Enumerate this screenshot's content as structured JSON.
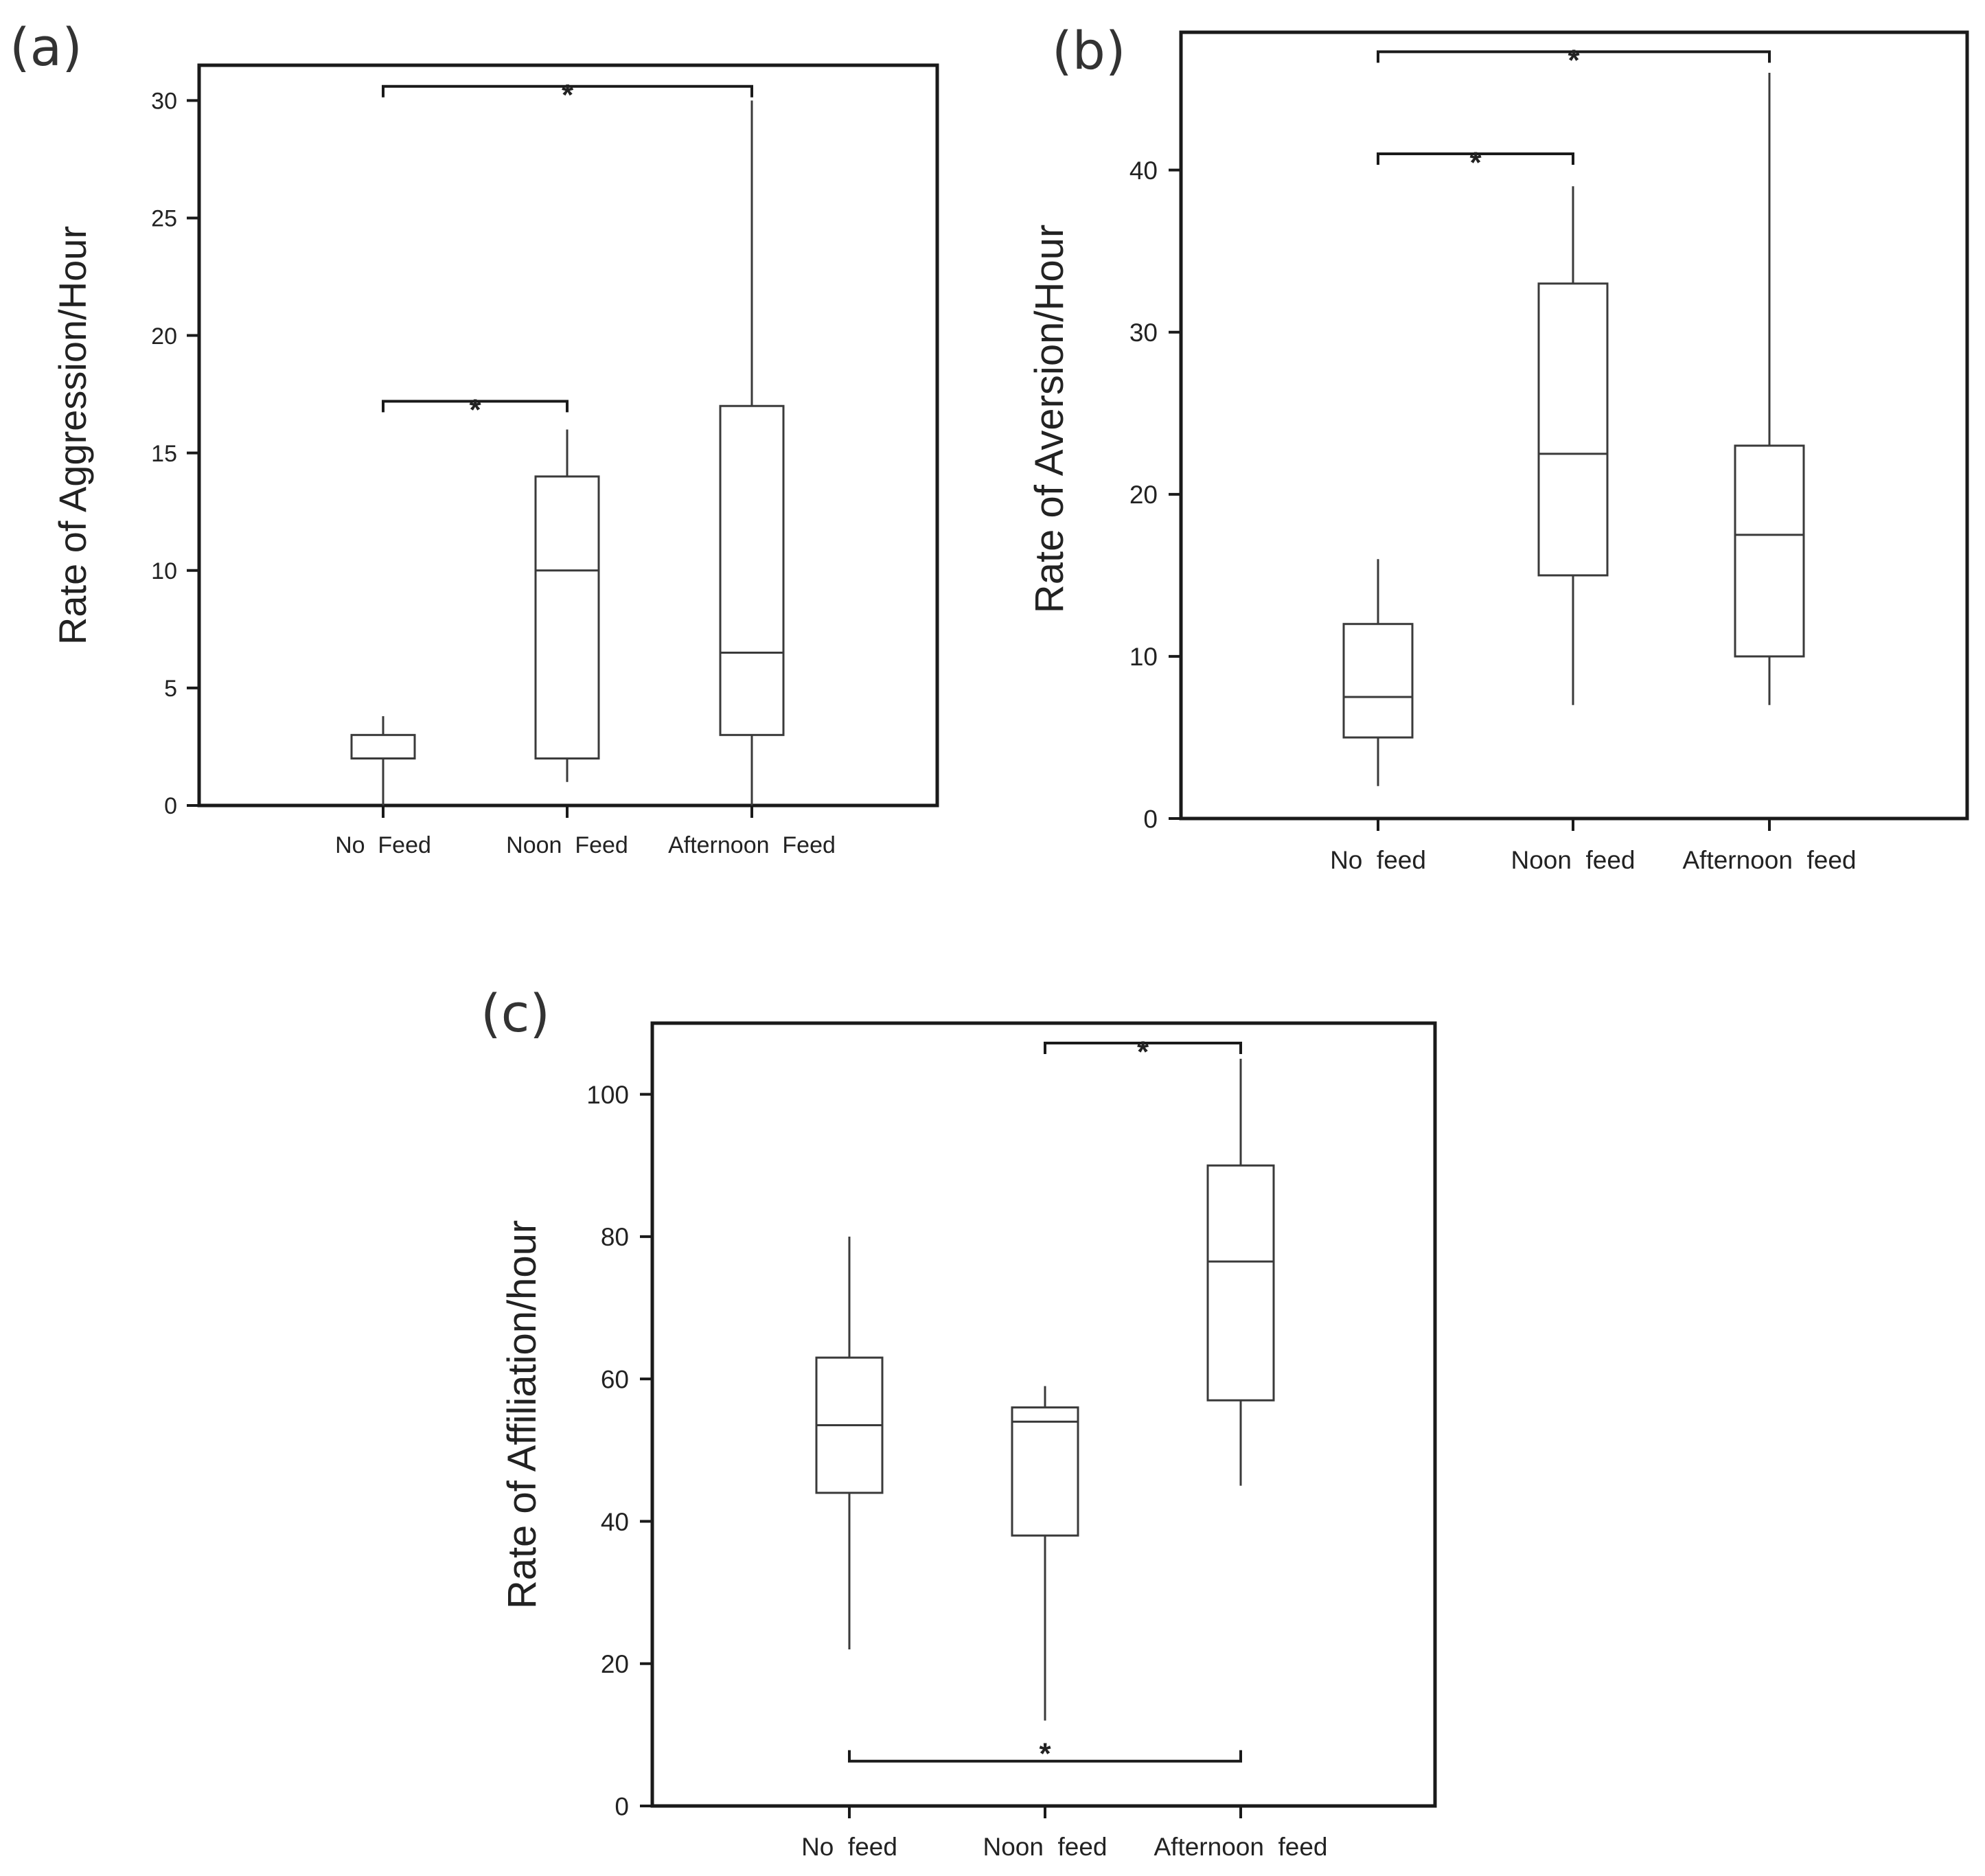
{
  "chart_data": [
    {
      "type": "boxplot",
      "panel_label": "(a)",
      "ylabel": "Rate of Aggression/Hour",
      "xlabel": "",
      "ylim": [
        0,
        31.5
      ],
      "yticks": [
        0,
        5,
        10,
        15,
        20,
        25,
        30
      ],
      "categories": [
        "No  Feed",
        "Noon  Feed",
        "Afternoon  Feed"
      ],
      "boxes": [
        {
          "min": 0,
          "q1": 2,
          "median": 2,
          "q3": 3,
          "max": 3.8
        },
        {
          "min": 1,
          "q1": 2,
          "median": 10,
          "q3": 14,
          "max": 16
        },
        {
          "min": 0,
          "q1": 3,
          "median": 6.5,
          "q3": 17,
          "max": 30
        }
      ],
      "significance": [
        {
          "from": 0,
          "to": 1,
          "label": "*",
          "y": 17.2,
          "side": "top"
        },
        {
          "from": 0,
          "to": 2,
          "label": "*",
          "y": 30.6,
          "side": "top"
        }
      ]
    },
    {
      "type": "boxplot",
      "panel_label": "(b)",
      "ylabel": "Rate of Aversion/Hour",
      "xlabel": "",
      "ylim": [
        0,
        48.5
      ],
      "yticks": [
        0,
        10,
        20,
        30,
        40
      ],
      "categories": [
        "No  feed",
        "Noon  feed",
        "Afternoon  feed"
      ],
      "boxes": [
        {
          "min": 2,
          "q1": 5,
          "median": 7.5,
          "q3": 12,
          "max": 16
        },
        {
          "min": 7,
          "q1": 15,
          "median": 22.5,
          "q3": 33,
          "max": 39
        },
        {
          "min": 7,
          "q1": 10,
          "median": 17.5,
          "q3": 23,
          "max": 46
        }
      ],
      "significance": [
        {
          "from": 0,
          "to": 1,
          "label": "*",
          "y": 41,
          "side": "top"
        },
        {
          "from": 0,
          "to": 2,
          "label": "*",
          "y": 47.3,
          "side": "top"
        }
      ]
    },
    {
      "type": "boxplot",
      "panel_label": "(c)",
      "ylabel": "Rate of Affiliation/hour",
      "xlabel": "",
      "ylim": [
        0,
        110
      ],
      "yticks": [
        0,
        20,
        40,
        60,
        80,
        100
      ],
      "categories": [
        "No  feed",
        "Noon  feed",
        "Afternoon  feed"
      ],
      "boxes": [
        {
          "min": 22,
          "q1": 44,
          "median": 53.5,
          "q3": 63,
          "max": 80
        },
        {
          "min": 12,
          "q1": 38,
          "median": 54,
          "q3": 56,
          "max": 59
        },
        {
          "min": 45,
          "q1": 57,
          "median": 76.5,
          "q3": 90,
          "max": 105
        }
      ],
      "significance": [
        {
          "from": 1,
          "to": 2,
          "label": "*",
          "y": 107.2,
          "side": "top"
        },
        {
          "from": 0,
          "to": 2,
          "label": "*",
          "y": 6.3,
          "side": "bottom"
        }
      ]
    }
  ]
}
